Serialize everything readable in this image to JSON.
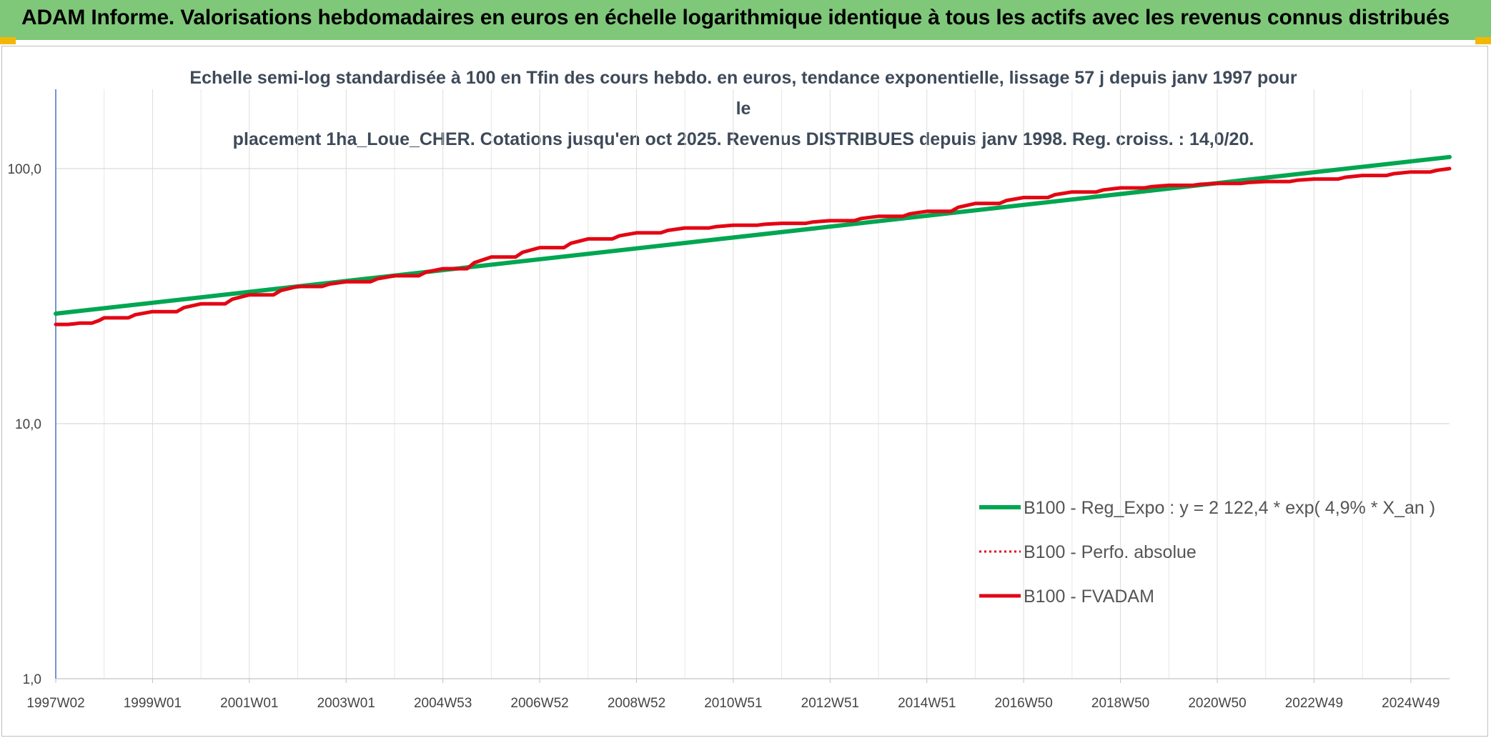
{
  "header": {
    "title": "ADAM Informe. Valorisations hebdomadaires en euros en échelle logarithmique identique à tous les actifs avec les revenus connus distribués"
  },
  "colors": {
    "header_bg": "#7fc87a",
    "corner_accent": "#f2b705",
    "regression": "#00a651",
    "fvadam": "#e30613",
    "perfo": "#e30613"
  },
  "chart_data": {
    "type": "line",
    "title_line1": "Echelle semi-log standardisée à 100 en Tfin des cours hebdo. en euros, tendance exponentielle, lissage 57 j depuis janv 1997 pour le",
    "title_line2": "placement 1ha_Loue_CHER. Cotations jusqu'en oct 2025. Revenus DISTRIBUES depuis janv 1998. Reg. croiss. : 14,0/20.",
    "y_scale": "log",
    "ylim": [
      1,
      200
    ],
    "y_ticks": [
      {
        "value": 100,
        "label": "100,0"
      },
      {
        "value": 10,
        "label": "10,0"
      },
      {
        "value": 1,
        "label": "1,0"
      }
    ],
    "xlim": [
      1997.0,
      2025.8
    ],
    "x_tick_labels": [
      "1997W02",
      "1999W01",
      "2001W01",
      "2003W01",
      "2004W53",
      "2006W52",
      "2008W52",
      "2010W51",
      "2012W51",
      "2014W51",
      "2016W50",
      "2018W50",
      "2020W50",
      "2022W49",
      "2024W49"
    ],
    "x_tick_values": [
      1997.0,
      1999.0,
      2001.0,
      2003.0,
      2005.0,
      2007.0,
      2009.0,
      2011.0,
      2013.0,
      2015.0,
      2017.0,
      2019.0,
      2021.0,
      2023.0,
      2025.0
    ],
    "grid": true,
    "legend_position": "lower-right",
    "series": [
      {
        "name": "B100 - Reg_Expo : y = 2 122,4 * exp( 4,9% *  X_an )",
        "style": "solid-green",
        "x": [
          1997.0,
          2025.8
        ],
        "y": [
          27.0,
          111.0
        ]
      },
      {
        "name": "B100 - Perfo. absolue",
        "style": "dotted-red",
        "x": [
          1997.0,
          1997.5,
          1998.0,
          1999.0,
          2000.0,
          2001.0,
          2002.0,
          2003.0,
          2004.0,
          2005.0,
          2006.0,
          2007.0,
          2008.0,
          2009.0,
          2010.0,
          2011.0,
          2012.0,
          2013.0,
          2014.0,
          2015.0,
          2016.0,
          2017.0,
          2018.0,
          2019.0,
          2020.0,
          2021.0,
          2022.0,
          2023.0,
          2024.0,
          2025.0,
          2025.8
        ],
        "y": [
          24.5,
          24.8,
          26.0,
          27.5,
          29.5,
          32.0,
          34.5,
          36.0,
          38.0,
          40.5,
          45.0,
          49.0,
          53.0,
          56.0,
          58.5,
          60.0,
          61.0,
          62.5,
          65.0,
          68.0,
          73.0,
          77.0,
          81.0,
          84.0,
          86.0,
          87.5,
          89.0,
          91.0,
          94.0,
          97.0,
          100.0
        ]
      },
      {
        "name": "B100 - FVADAM",
        "style": "solid-red",
        "x": [
          1997.0,
          1997.5,
          1998.0,
          1999.0,
          2000.0,
          2001.0,
          2002.0,
          2003.0,
          2004.0,
          2005.0,
          2006.0,
          2007.0,
          2008.0,
          2009.0,
          2010.0,
          2011.0,
          2012.0,
          2013.0,
          2014.0,
          2015.0,
          2016.0,
          2017.0,
          2018.0,
          2019.0,
          2020.0,
          2021.0,
          2022.0,
          2023.0,
          2024.0,
          2025.0,
          2025.8
        ],
        "y": [
          24.5,
          24.8,
          26.0,
          27.5,
          29.5,
          32.0,
          34.5,
          36.0,
          38.0,
          40.5,
          45.0,
          49.0,
          53.0,
          56.0,
          58.5,
          60.0,
          61.0,
          62.5,
          65.0,
          68.0,
          73.0,
          77.0,
          81.0,
          84.0,
          86.0,
          87.5,
          89.0,
          91.0,
          94.0,
          97.0,
          100.0
        ]
      }
    ]
  }
}
